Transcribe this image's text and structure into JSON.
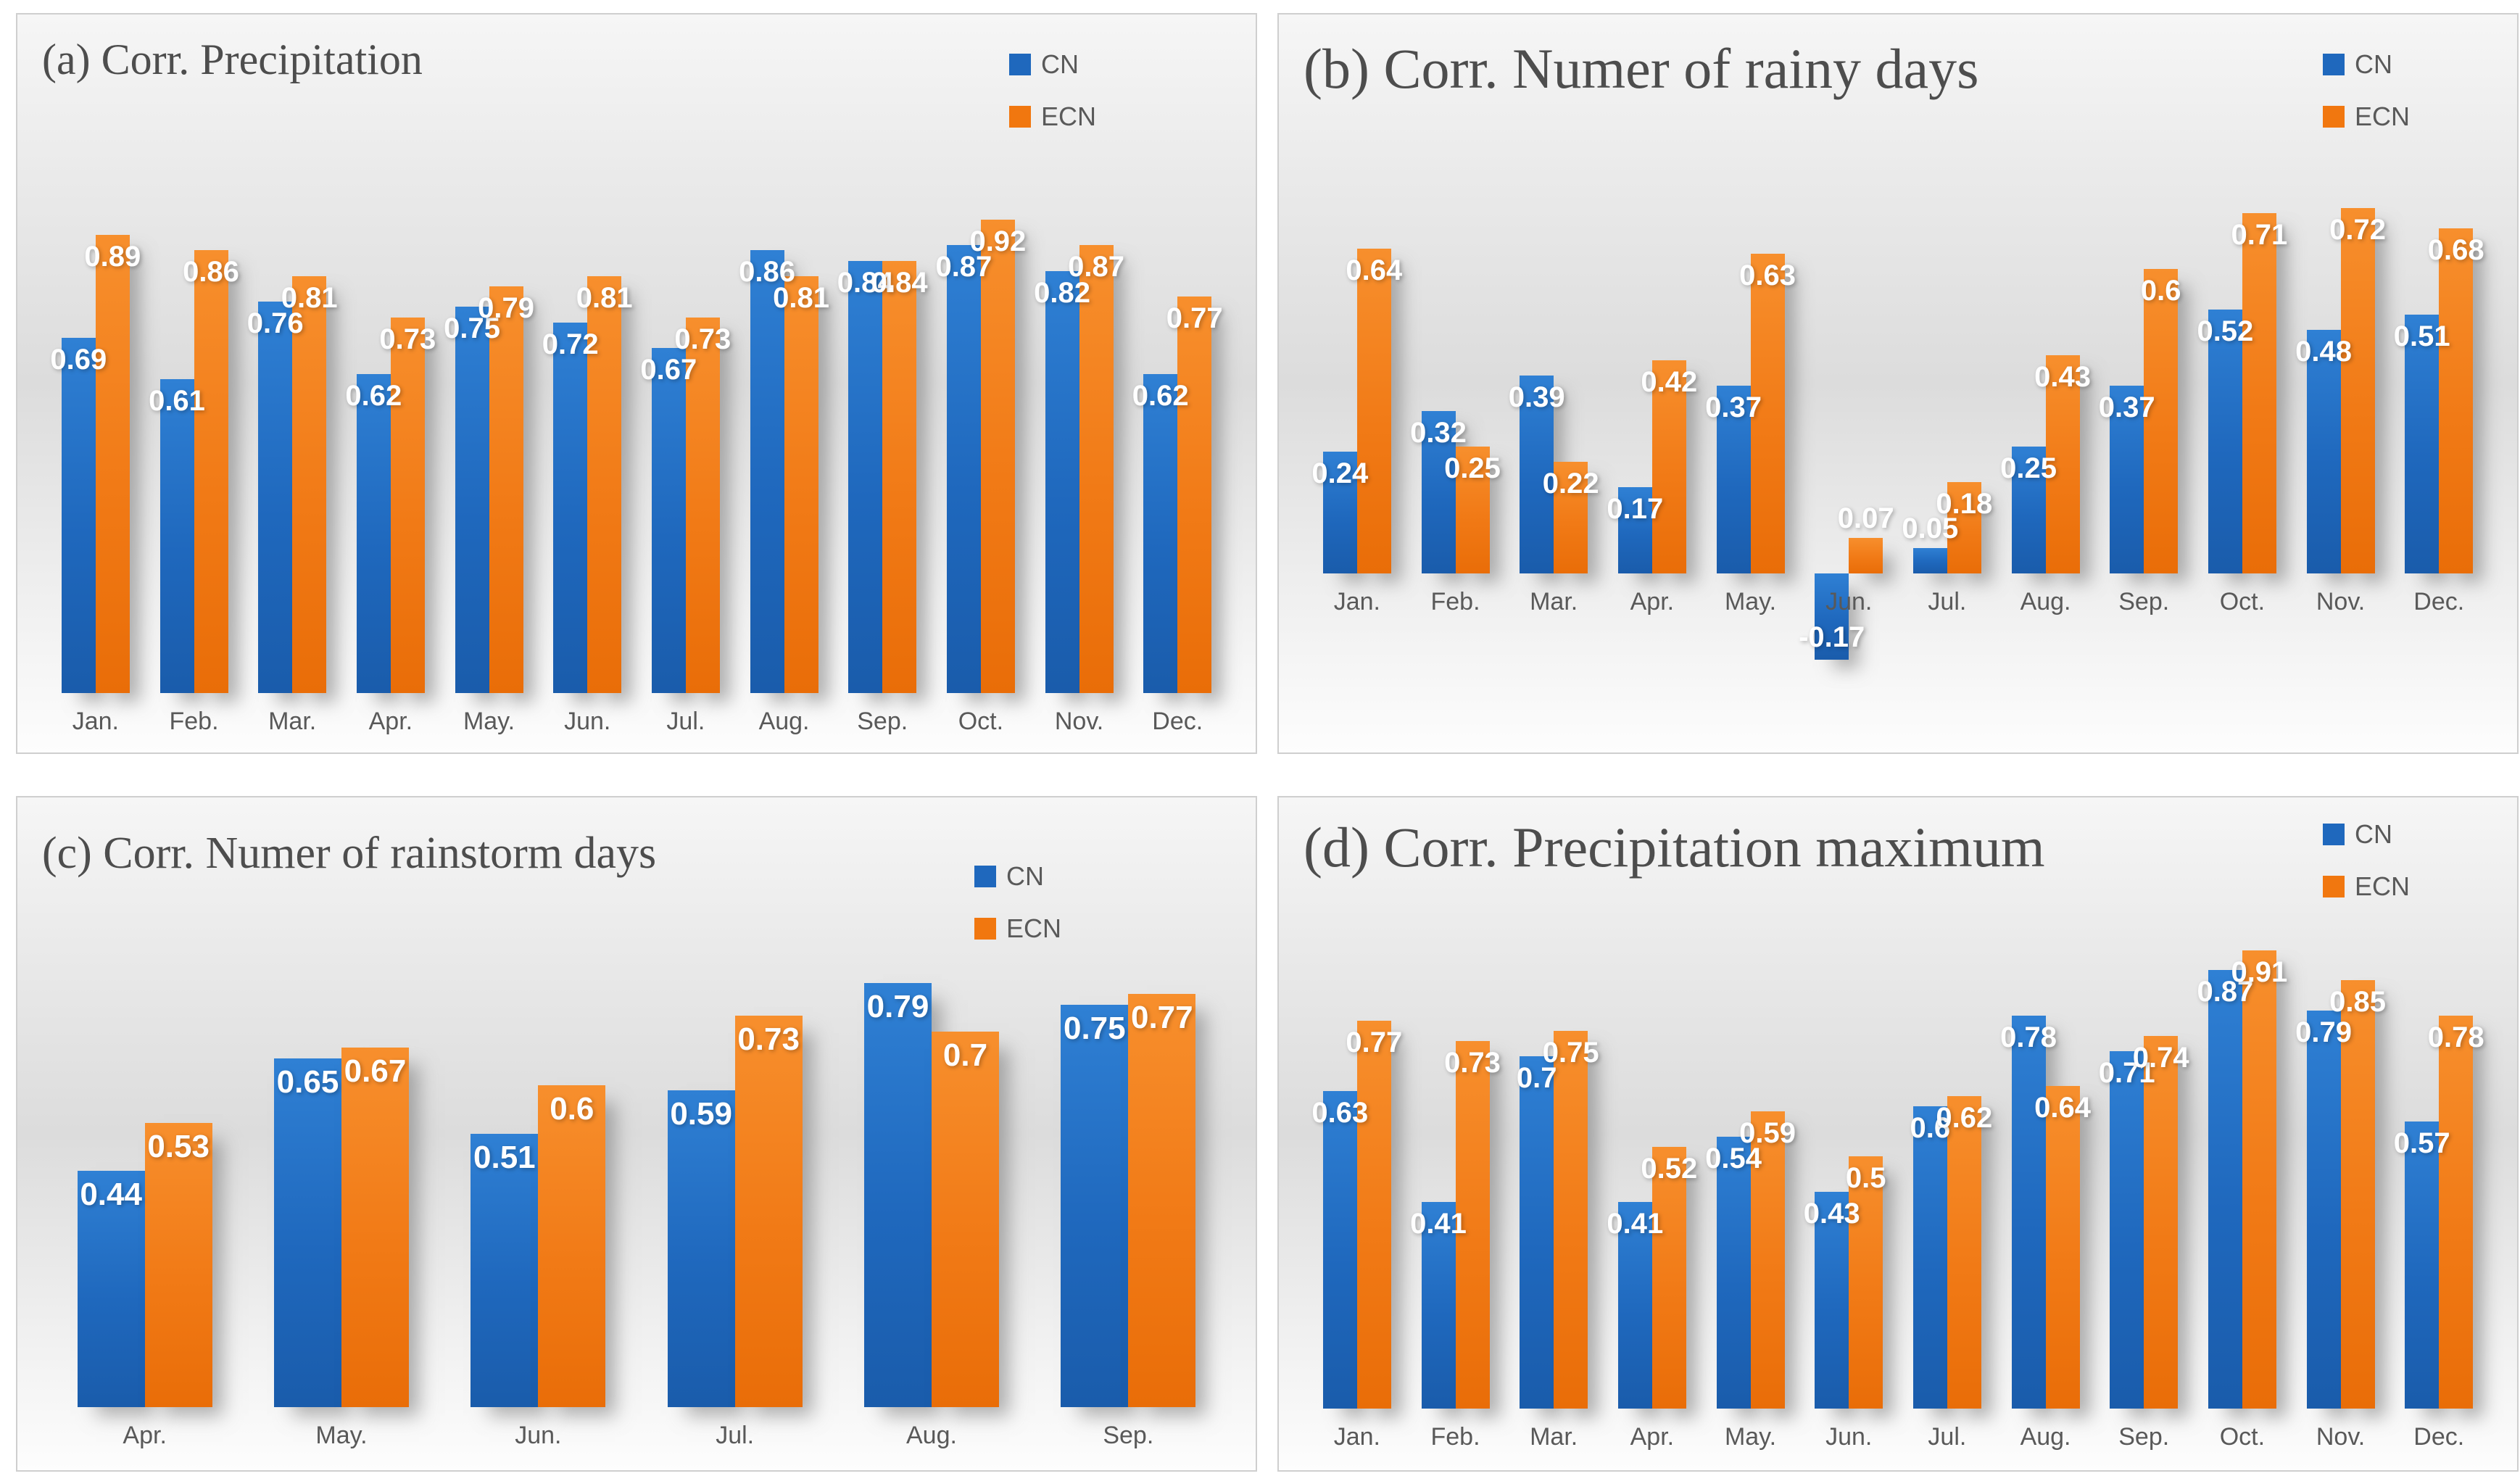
{
  "colors": {
    "cn": "#1f68bd",
    "ecn": "#f1770f"
  },
  "chart_data": [
    {
      "type": "bar",
      "panel": "a",
      "title": "(a) Corr. Precipitation",
      "categories": [
        "Jan.",
        "Feb.",
        "Mar.",
        "Apr.",
        "May.",
        "Jun.",
        "Jul.",
        "Aug.",
        "Sep.",
        "Oct.",
        "Nov.",
        "Dec."
      ],
      "series": [
        {
          "name": "CN",
          "values": [
            0.69,
            0.61,
            0.76,
            0.62,
            0.75,
            0.72,
            0.67,
            0.86,
            0.84,
            0.87,
            0.82,
            0.62
          ]
        },
        {
          "name": "ECN",
          "values": [
            0.89,
            0.86,
            0.81,
            0.73,
            0.79,
            0.81,
            0.73,
            0.81,
            0.84,
            0.92,
            0.87,
            0.77
          ]
        }
      ],
      "xlabel": "",
      "ylabel": "",
      "ylim": [
        0,
        1
      ],
      "grid": false,
      "legend_position": "top-right",
      "value_labels": "inside-end"
    },
    {
      "type": "bar",
      "panel": "b",
      "title": "(b) Corr. Numer of rainy days",
      "categories": [
        "Jan.",
        "Feb.",
        "Mar.",
        "Apr.",
        "May.",
        "Jun.",
        "Jul.",
        "Aug.",
        "Sep.",
        "Oct.",
        "Nov.",
        "Dec."
      ],
      "series": [
        {
          "name": "CN",
          "values": [
            0.24,
            0.32,
            0.39,
            0.17,
            0.37,
            -0.17,
            0.05,
            0.25,
            0.37,
            0.52,
            0.48,
            0.51
          ]
        },
        {
          "name": "ECN",
          "values": [
            0.64,
            0.25,
            0.22,
            0.42,
            0.63,
            0.07,
            0.18,
            0.43,
            0.6,
            0.71,
            0.72,
            0.68
          ]
        }
      ],
      "xlabel": "",
      "ylabel": "",
      "ylim": [
        -0.2,
        0.8
      ],
      "grid": false,
      "legend_position": "top-right",
      "value_labels": "inside-end"
    },
    {
      "type": "bar",
      "panel": "c",
      "title": "(c) Corr. Numer of rainstorm days",
      "categories": [
        "Apr.",
        "May.",
        "Jun.",
        "Jul.",
        "Aug.",
        "Sep."
      ],
      "series": [
        {
          "name": "CN",
          "values": [
            0.44,
            0.65,
            0.51,
            0.59,
            0.79,
            0.75
          ]
        },
        {
          "name": "ECN",
          "values": [
            0.53,
            0.67,
            0.6,
            0.73,
            0.7,
            0.77
          ]
        }
      ],
      "xlabel": "",
      "ylabel": "",
      "ylim": [
        0,
        0.9
      ],
      "grid": false,
      "legend_position": "top-right",
      "value_labels": "inside-end"
    },
    {
      "type": "bar",
      "panel": "d",
      "title": "(d) Corr. Precipitation maximum",
      "categories": [
        "Jan.",
        "Feb.",
        "Mar.",
        "Apr.",
        "May.",
        "Jun.",
        "Jul.",
        "Aug.",
        "Sep.",
        "Oct.",
        "Nov.",
        "Dec."
      ],
      "series": [
        {
          "name": "CN",
          "values": [
            0.63,
            0.41,
            0.7,
            0.41,
            0.54,
            0.43,
            0.6,
            0.78,
            0.71,
            0.87,
            0.79,
            0.57
          ]
        },
        {
          "name": "ECN",
          "values": [
            0.77,
            0.73,
            0.75,
            0.52,
            0.59,
            0.5,
            0.62,
            0.64,
            0.74,
            0.91,
            0.85,
            0.78
          ]
        }
      ],
      "xlabel": "",
      "ylabel": "",
      "ylim": [
        0,
        1
      ],
      "grid": false,
      "legend_position": "top-right",
      "value_labels": "inside-end"
    }
  ]
}
